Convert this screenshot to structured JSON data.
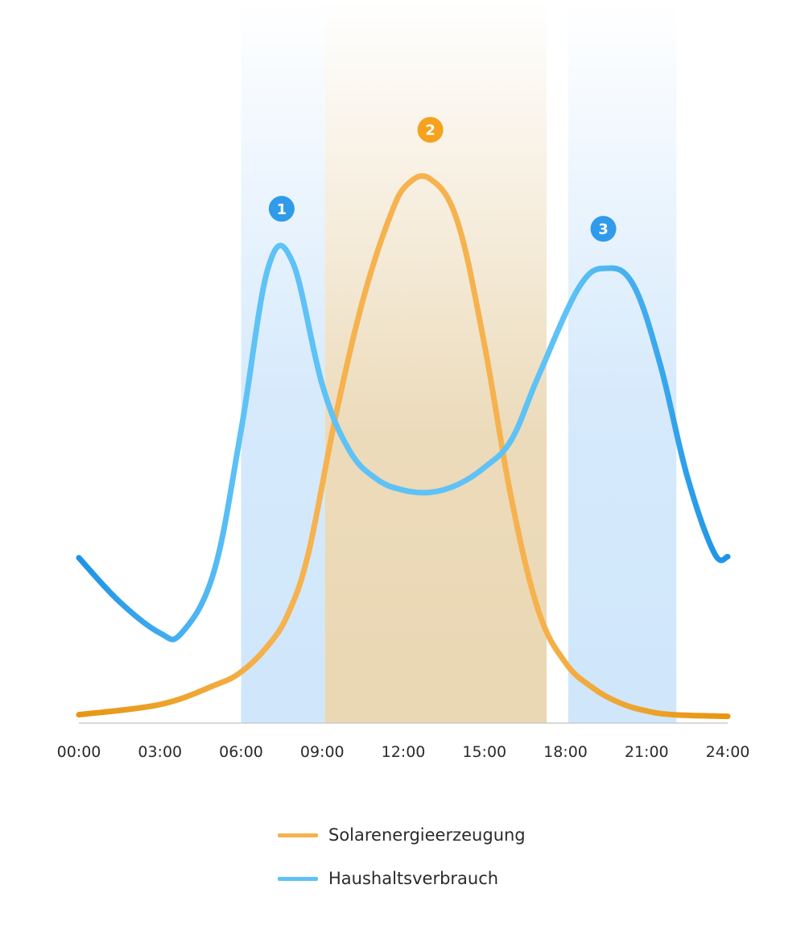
{
  "colors": {
    "solar": "#F6B24E",
    "solar_dark": "#E6960F",
    "consumption": "#5EC2F6",
    "consumption_dark": "#1E93E6",
    "band_blue": "#CFE6FB",
    "band_orange": "#EAD7B3",
    "badge_blue": "#2F9BEA",
    "badge_orange": "#F5A21E",
    "axis": "#cccccc"
  },
  "chart_data": {
    "type": "line",
    "x_ticks": [
      "00:00",
      "03:00",
      "06:00",
      "09:00",
      "12:00",
      "15:00",
      "18:00",
      "21:00",
      "24:00"
    ],
    "xlim": [
      0,
      24
    ],
    "ylim": [
      0,
      100
    ],
    "y_axis_labels_shown": false,
    "grid": false,
    "legend_position": "bottom",
    "series": [
      {
        "name": "Solarenergieerzeugung",
        "color_key": "solar",
        "points": [
          [
            0,
            0.8
          ],
          [
            3,
            2.7
          ],
          [
            5,
            6.2
          ],
          [
            6,
            8.7
          ],
          [
            7,
            13.6
          ],
          [
            7.75,
            19.6
          ],
          [
            8.5,
            30.9
          ],
          [
            9.5,
            56.0
          ],
          [
            10.5,
            77.3
          ],
          [
            11.5,
            92.8
          ],
          [
            12.15,
            98.8
          ],
          [
            13,
            99.8
          ],
          [
            14,
            92.0
          ],
          [
            15,
            69.2
          ],
          [
            16,
            40.7
          ],
          [
            17,
            20.0
          ],
          [
            18,
            10.4
          ],
          [
            19,
            5.8
          ],
          [
            20,
            3.0
          ],
          [
            21,
            1.5
          ],
          [
            22,
            0.8
          ],
          [
            24,
            0.5
          ]
        ]
      },
      {
        "name": "Haushaltsverbrauch",
        "color_key": "consumption",
        "points": [
          [
            0,
            29.8
          ],
          [
            1.5,
            21.7
          ],
          [
            3,
            15.9
          ],
          [
            3.8,
            15.9
          ],
          [
            5,
            27.3
          ],
          [
            6,
            53.4
          ],
          [
            7,
            83.4
          ],
          [
            7.9,
            84.5
          ],
          [
            9,
            61.8
          ],
          [
            10,
            49.7
          ],
          [
            11,
            44.4
          ],
          [
            12,
            42.3
          ],
          [
            13,
            41.9
          ],
          [
            14,
            43.3
          ],
          [
            15,
            46.5
          ],
          [
            16,
            51.6
          ],
          [
            17,
            63.4
          ],
          [
            18.5,
            79.8
          ],
          [
            19.5,
            83.3
          ],
          [
            20.5,
            80.3
          ],
          [
            21.5,
            65.6
          ],
          [
            22.5,
            44.9
          ],
          [
            23.5,
            30.7
          ],
          [
            24,
            30.0
          ]
        ]
      }
    ],
    "bands": [
      {
        "x_start": 6.0,
        "x_end": 9.1,
        "color_key": "band_blue"
      },
      {
        "x_start": 9.1,
        "x_end": 17.3,
        "color_key": "band_orange"
      },
      {
        "x_start": 18.1,
        "x_end": 22.1,
        "color_key": "band_blue"
      }
    ],
    "annotations": [
      {
        "label": "1",
        "x": 7.5,
        "y": 94.3,
        "color_key": "badge_blue"
      },
      {
        "label": "2",
        "x": 13.0,
        "y": 108.9,
        "color_key": "badge_orange"
      },
      {
        "label": "3",
        "x": 19.4,
        "y": 90.6,
        "color_key": "badge_blue"
      }
    ]
  },
  "legend": {
    "items": [
      {
        "label": "Solarenergieerzeugung",
        "color_key": "solar"
      },
      {
        "label": "Haushaltsverbrauch",
        "color_key": "consumption"
      }
    ]
  }
}
